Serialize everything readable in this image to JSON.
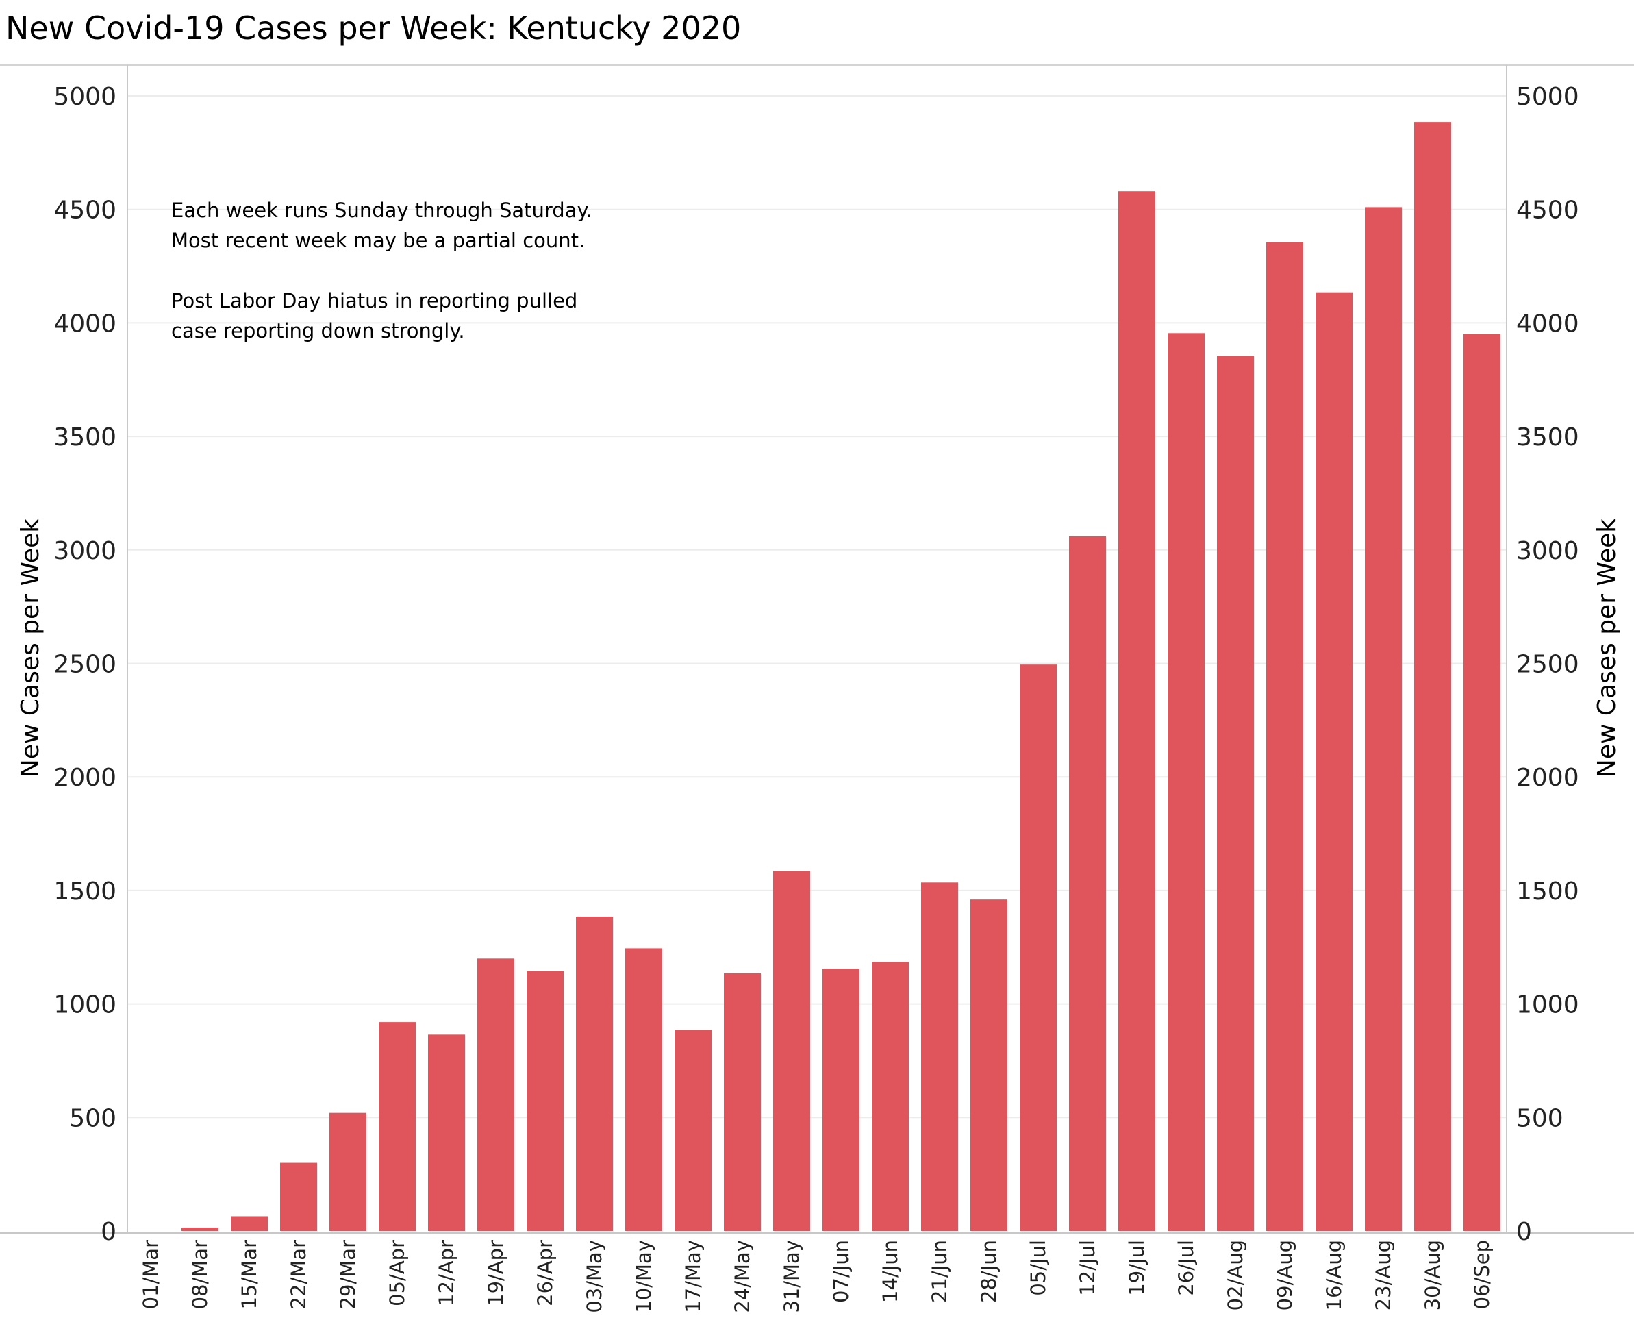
{
  "chart_data": {
    "type": "bar",
    "title": "New Covid-19 Cases per Week:  Kentucky 2020",
    "xlabel": "",
    "ylabel": "New Cases per Week",
    "ylabel_right": "New Cases per Week",
    "ylim": [
      0,
      5000
    ],
    "yticks": [
      "0",
      "500",
      "1000",
      "1500",
      "2000",
      "2500",
      "3000",
      "3500",
      "4000",
      "4500",
      "5000"
    ],
    "grid": true,
    "bar_color": "#e0545b",
    "categories": [
      "01/Mar",
      "08/Mar",
      "15/Mar",
      "22/Mar",
      "29/Mar",
      "05/Apr",
      "12/Apr",
      "19/Apr",
      "26/Apr",
      "03/May",
      "10/May",
      "17/May",
      "24/May",
      "31/May",
      "07/Jun",
      "14/Jun",
      "21/Jun",
      "28/Jun",
      "05/Jul",
      "12/Jul",
      "19/Jul",
      "26/Jul",
      "02/Aug",
      "09/Aug",
      "16/Aug",
      "23/Aug",
      "30/Aug",
      "06/Sep"
    ],
    "values": [
      0,
      15,
      65,
      300,
      520,
      920,
      865,
      1200,
      1145,
      1385,
      1245,
      885,
      1135,
      1585,
      1155,
      1185,
      1535,
      1460,
      2495,
      3060,
      4580,
      3955,
      3855,
      4355,
      4135,
      4510,
      4885,
      3950
    ],
    "annotations": [
      "Each week runs Sunday through Saturday.",
      "Most recent week may be a partial count.",
      "",
      "Post Labor Day hiatus in reporting pulled",
      "case reporting down strongly."
    ]
  }
}
